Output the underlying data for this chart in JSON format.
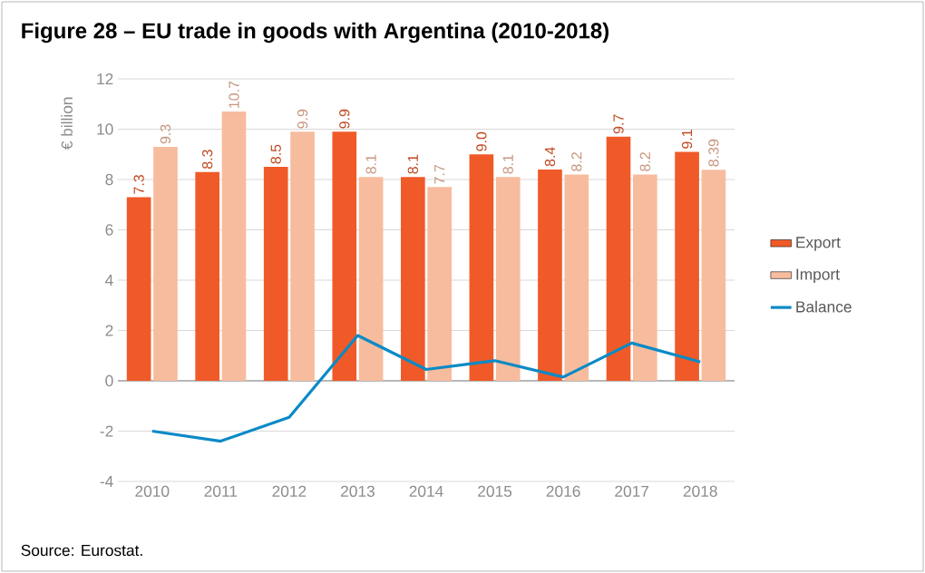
{
  "chart_data": {
    "type": "bar",
    "title": "Figure 28 – EU trade in goods with Argentina (2010-2018)",
    "ylabel": "€ billion",
    "annotations": [
      "Source: Eurostat."
    ],
    "categories": [
      "2010",
      "2011",
      "2012",
      "2013",
      "2014",
      "2015",
      "2016",
      "2017",
      "2018"
    ],
    "series": [
      {
        "name": "Export",
        "color": "#f05a28",
        "values": [
          7.3,
          8.3,
          8.5,
          9.9,
          8.1,
          9.0,
          8.4,
          9.7,
          9.1
        ],
        "value_labels": [
          "7.3",
          "8.3",
          "8.5",
          "9.9",
          "8.1",
          "9.0",
          "8.4",
          "9.7",
          "9.1"
        ]
      },
      {
        "name": "Import",
        "color": "#f7bc9e",
        "values": [
          9.3,
          10.7,
          9.9,
          8.1,
          7.7,
          8.1,
          8.2,
          8.2,
          8.39
        ],
        "value_labels": [
          "9.3",
          "10.7",
          "9.9",
          "8.1",
          "7.7",
          "8.1",
          "8.2",
          "8.2",
          "8.39"
        ]
      },
      {
        "name": "Balance",
        "type": "line",
        "color": "#0a8ac6",
        "values": [
          -2.0,
          -2.4,
          -1.45,
          1.8,
          0.45,
          0.8,
          0.15,
          1.5,
          0.75
        ]
      }
    ],
    "ylim": [
      -4,
      12
    ],
    "yticks": [
      -4,
      -2,
      0,
      2,
      4,
      6,
      8,
      10,
      12
    ],
    "grid": "y",
    "legend": "right"
  }
}
